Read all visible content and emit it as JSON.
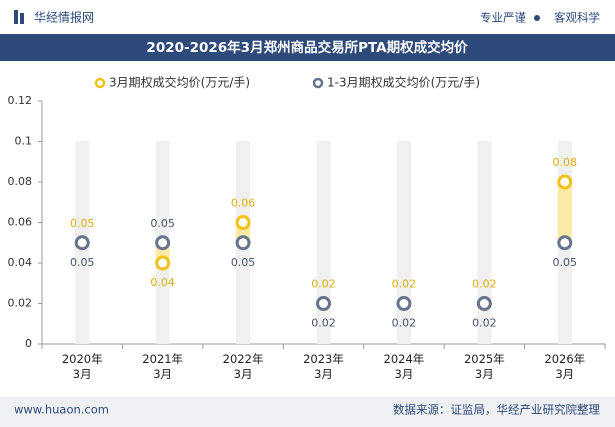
{
  "header": {
    "brand": "华经情报网",
    "slogan_left": "专业严谨",
    "slogan_right": "客观科学"
  },
  "chart_data": {
    "type": "dot",
    "title": "2020-2026年3月郑州商品交易所PTA期权成交均价",
    "categories": [
      "2020年\n3月",
      "2021年\n3月",
      "2022年\n3月",
      "2023年\n3月",
      "2024年\n3月",
      "2025年\n3月",
      "2026年\n3月"
    ],
    "series": [
      {
        "name": "3月期权成交均价(万元/手)",
        "color": "#f2c21b",
        "values": [
          0.05,
          0.04,
          0.06,
          0.02,
          0.02,
          0.02,
          0.08
        ]
      },
      {
        "name": "1-3月期权成交均价(万元/手)",
        "color": "#66748e",
        "values": [
          0.05,
          0.05,
          0.05,
          0.02,
          0.02,
          0.02,
          0.05
        ]
      }
    ],
    "ylim": [
      0,
      0.12
    ],
    "yticks": [
      0,
      0.02,
      0.04,
      0.06,
      0.08,
      0.1,
      0.12
    ],
    "band_color": "#fbe9a6"
  },
  "footer": {
    "website": "www.huaon.com",
    "source": "数据来源：证监局，华经产业研究院整理"
  }
}
